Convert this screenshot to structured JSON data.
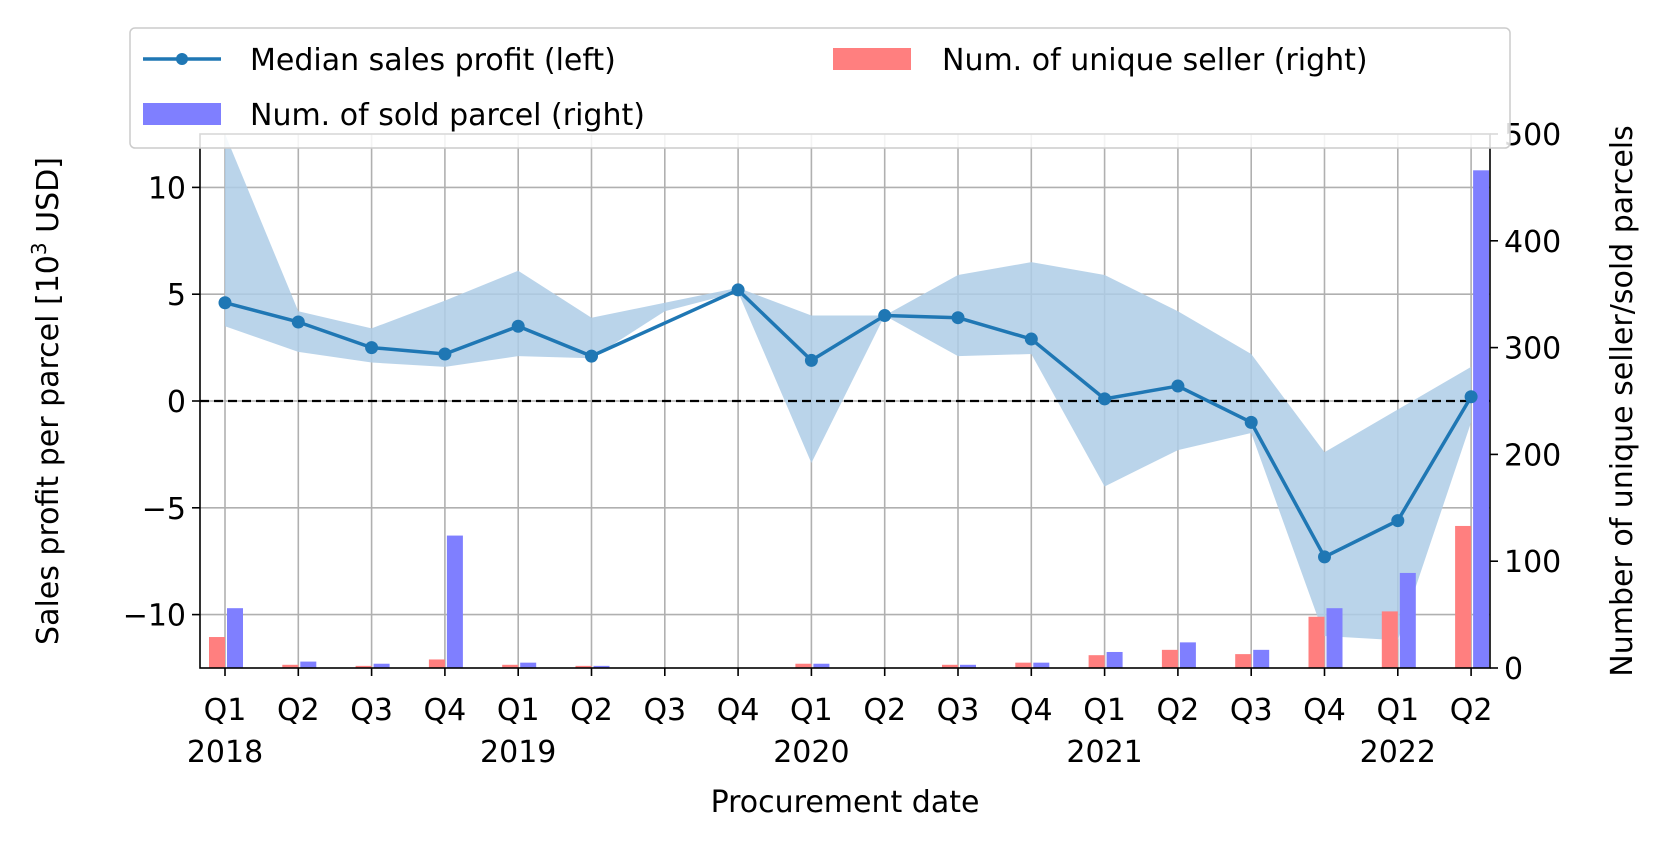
{
  "chart_data": {
    "type": "bar+line",
    "title": "",
    "xlabel": "Procurement date",
    "ylabel_left_prefix": "Sales profit per parcel [10",
    "ylabel_left_exp": "3",
    "ylabel_left_suffix": " USD]",
    "ylabel_right": "Number of unique seller/sold parcels",
    "ylim_left": [
      -12.5,
      12.5
    ],
    "ylim_right": [
      0,
      500
    ],
    "yticks_left": [
      10,
      5,
      0,
      -5,
      -10
    ],
    "ytick_labels_left": [
      "10",
      "5",
      "0",
      "−5",
      "−10"
    ],
    "yticks_right": [
      0,
      100,
      200,
      300,
      400,
      500
    ],
    "ytick_labels_right": [
      "0",
      "100",
      "200",
      "300",
      "400",
      "500"
    ],
    "categories": [
      "Q1",
      "Q2",
      "Q3",
      "Q4",
      "Q1",
      "Q2",
      "Q3",
      "Q4",
      "Q1",
      "Q2",
      "Q3",
      "Q4",
      "Q1",
      "Q2",
      "Q3",
      "Q4",
      "Q1",
      "Q2"
    ],
    "year_labels": [
      {
        "index": 0,
        "label": "2018"
      },
      {
        "index": 4,
        "label": "2019"
      },
      {
        "index": 8,
        "label": "2020"
      },
      {
        "index": 12,
        "label": "2021"
      },
      {
        "index": 16,
        "label": "2022"
      }
    ],
    "zero_line": 0,
    "grid": true,
    "legend": {
      "placement": "top",
      "entries": [
        {
          "label": "Median sales profit (left)",
          "color": "#1f77b4",
          "kind": "line"
        },
        {
          "label": "Num. of unique seller (right)",
          "color": "#ff7f7f",
          "kind": "bar"
        },
        {
          "label": "Num. of sold parcel (right)",
          "color": "#7f7fff",
          "kind": "bar"
        }
      ]
    },
    "series": [
      {
        "name": "Median sales profit (left)",
        "axis": "left",
        "type": "line",
        "color": "#1f77b4",
        "values": [
          4.6,
          3.7,
          2.5,
          2.2,
          3.5,
          2.1,
          null,
          5.2,
          1.9,
          4.0,
          3.9,
          2.9,
          0.1,
          0.7,
          -1.0,
          -7.3,
          -5.6,
          0.2
        ]
      },
      {
        "name": "Profit range band",
        "axis": "left",
        "type": "area",
        "color": "#aecde6",
        "upper": [
          12.5,
          4.2,
          3.4,
          4.7,
          6.1,
          3.9,
          4.6,
          5.3,
          4.0,
          4.0,
          5.9,
          6.5,
          5.9,
          4.2,
          2.2,
          -2.4,
          -0.4,
          1.6
        ],
        "lower": [
          3.5,
          2.3,
          1.8,
          1.6,
          2.1,
          2.0,
          4.2,
          5.1,
          -2.9,
          4.0,
          2.1,
          2.2,
          -4.0,
          -2.3,
          -1.5,
          -11.0,
          -11.2,
          -1.0
        ]
      },
      {
        "name": "Num. of unique seller (right)",
        "axis": "right",
        "type": "bar",
        "color": "#ff7f7f",
        "values": [
          29,
          3,
          2,
          8,
          3,
          2,
          0,
          0,
          4,
          0,
          3,
          5,
          12,
          17,
          13,
          48,
          53,
          133
        ]
      },
      {
        "name": "Num. of sold parcel (right)",
        "axis": "right",
        "type": "bar",
        "color": "#7f7fff",
        "values": [
          56,
          6,
          4,
          124,
          5,
          2,
          0,
          0,
          4,
          0,
          3,
          5,
          15,
          24,
          17,
          56,
          89,
          466
        ]
      }
    ]
  }
}
